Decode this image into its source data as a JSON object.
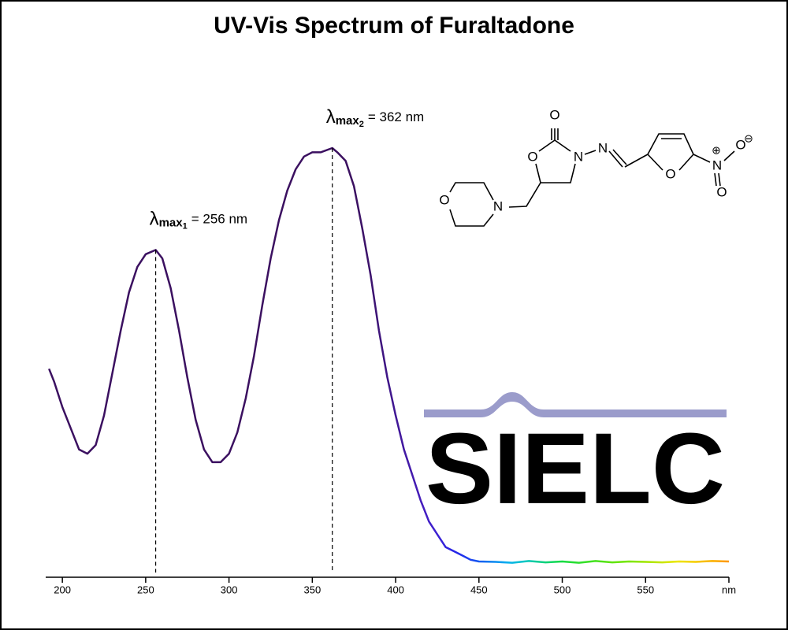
{
  "chart_data": {
    "type": "line",
    "title": "UV-Vis Spectrum of Furaltadone",
    "x": [
      192,
      195,
      200,
      205,
      210,
      215,
      220,
      225,
      230,
      235,
      240,
      245,
      250,
      256,
      260,
      265,
      270,
      275,
      280,
      285,
      290,
      295,
      300,
      305,
      310,
      315,
      320,
      325,
      330,
      335,
      340,
      345,
      350,
      355,
      362,
      365,
      370,
      375,
      380,
      385,
      390,
      395,
      400,
      405,
      410,
      415,
      420,
      425,
      430,
      435,
      440,
      445,
      450,
      460,
      470,
      480,
      490,
      500,
      510,
      520,
      530,
      540,
      550,
      560,
      570,
      580,
      590,
      600
    ],
    "series": [
      {
        "color": "#3b1060",
        "values": [
          0.48,
          0.45,
          0.39,
          0.34,
          0.29,
          0.28,
          0.3,
          0.37,
          0.47,
          0.57,
          0.66,
          0.72,
          0.75,
          0.76,
          0.74,
          0.67,
          0.57,
          0.46,
          0.36,
          0.29,
          0.26,
          0.26,
          0.28,
          0.33,
          0.41,
          0.51,
          0.63,
          0.74,
          0.83,
          0.9,
          0.95,
          0.98,
          0.99,
          0.99,
          1.0,
          0.99,
          0.97,
          0.91,
          0.81,
          0.7,
          0.57,
          0.46,
          0.37,
          0.29,
          0.23,
          0.17,
          0.12,
          0.09,
          0.06,
          0.05,
          0.04,
          0.03,
          0.026,
          0.025,
          0.023,
          0.027,
          0.024,
          0.026,
          0.023,
          0.027,
          0.024,
          0.026,
          0.025,
          0.024,
          0.026,
          0.025,
          0.027,
          0.026
        ]
      }
    ],
    "spectral_gradient": true,
    "xlim": [
      190,
      600
    ],
    "ylim": [
      0,
      1
    ],
    "xticks": [
      200,
      250,
      300,
      350,
      400,
      450,
      500,
      550,
      {
        "value": 600,
        "label": "nm"
      }
    ],
    "annotations": [
      {
        "symbol": "λ",
        "sub": "max",
        "index": "1",
        "text": "= 256 nm",
        "x": 256
      },
      {
        "symbol": "λ",
        "sub": "max",
        "index": "2",
        "text": "= 362 nm",
        "x": 362
      }
    ],
    "watermark": "SIELC",
    "structure_atoms": [
      "O",
      "O",
      "N",
      "N",
      "O",
      "N",
      "O",
      "O",
      "O",
      "N"
    ],
    "structure_charges": [
      "⊕",
      "⊖"
    ]
  }
}
